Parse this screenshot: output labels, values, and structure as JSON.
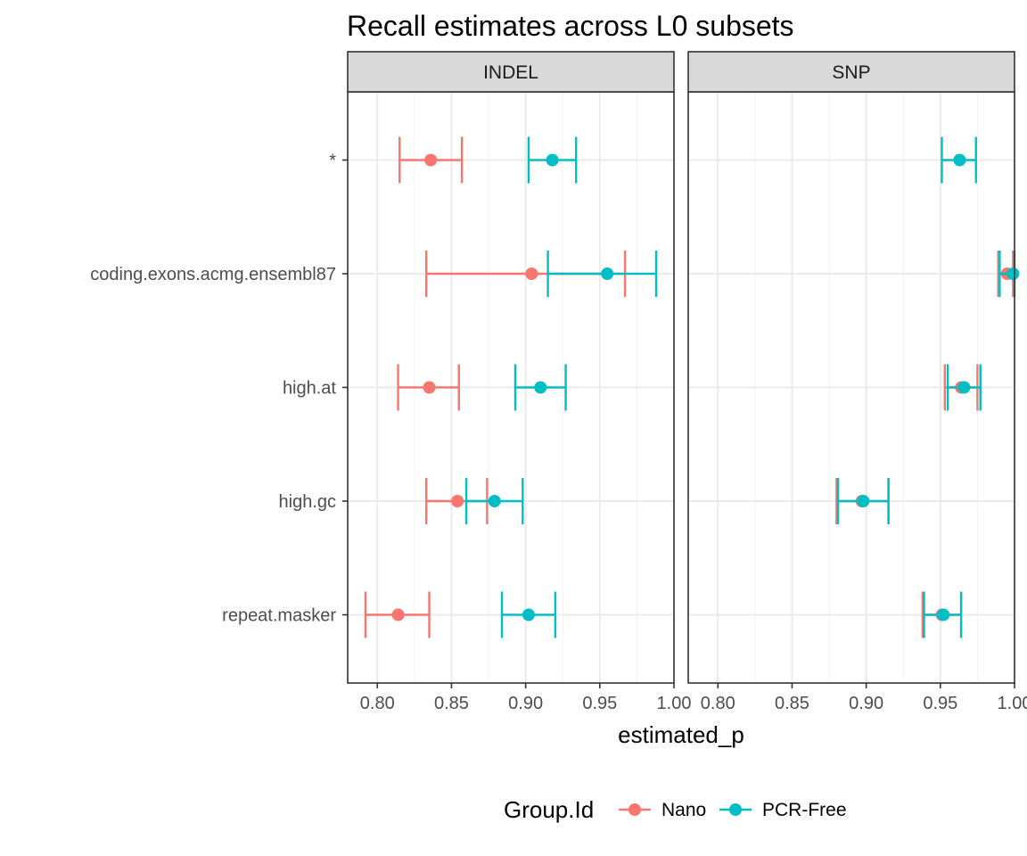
{
  "chart_data": {
    "type": "scatter",
    "title": "Recall estimates across L0 subsets",
    "xlabel": "estimated_p",
    "ylabel": "",
    "categories": [
      "*",
      "coding.exons.acmg.ensembl87",
      "high.at",
      "high.gc",
      "repeat.masker"
    ],
    "xlim": [
      0.78,
      1.0
    ],
    "x_ticks": [
      "0.80",
      "0.85",
      "0.90",
      "0.95",
      "1.00"
    ],
    "x_tick_values": [
      0.8,
      0.85,
      0.9,
      0.95,
      1.0
    ],
    "grid": true,
    "legend": {
      "title": "Group.Id",
      "position": "bottom",
      "entries": [
        "Nano",
        "PCR-Free"
      ]
    },
    "colors": {
      "Nano": "#f8766d",
      "PCR-Free": "#00bfc4"
    },
    "panels": [
      {
        "label": "INDEL",
        "series": [
          {
            "name": "Nano",
            "points": [
              {
                "category": "*",
                "estimate": 0.836,
                "low": 0.815,
                "high": 0.857
              },
              {
                "category": "coding.exons.acmg.ensembl87",
                "estimate": 0.904,
                "low": 0.833,
                "high": 0.967
              },
              {
                "category": "high.at",
                "estimate": 0.835,
                "low": 0.814,
                "high": 0.855
              },
              {
                "category": "high.gc",
                "estimate": 0.854,
                "low": 0.833,
                "high": 0.874
              },
              {
                "category": "repeat.masker",
                "estimate": 0.814,
                "low": 0.792,
                "high": 0.835
              }
            ]
          },
          {
            "name": "PCR-Free",
            "points": [
              {
                "category": "*",
                "estimate": 0.918,
                "low": 0.902,
                "high": 0.934
              },
              {
                "category": "coding.exons.acmg.ensembl87",
                "estimate": 0.955,
                "low": 0.915,
                "high": 0.988
              },
              {
                "category": "high.at",
                "estimate": 0.91,
                "low": 0.893,
                "high": 0.927
              },
              {
                "category": "high.gc",
                "estimate": 0.879,
                "low": 0.86,
                "high": 0.898
              },
              {
                "category": "repeat.masker",
                "estimate": 0.902,
                "low": 0.884,
                "high": 0.92
              }
            ]
          }
        ]
      },
      {
        "label": "SNP",
        "series": [
          {
            "name": "Nano",
            "points": [
              {
                "category": "coding.exons.acmg.ensembl87",
                "estimate": 0.995,
                "low": 0.989,
                "high": 0.999
              },
              {
                "category": "high.at",
                "estimate": 0.964,
                "low": 0.953,
                "high": 0.975
              },
              {
                "category": "high.gc",
                "estimate": 0.897,
                "low": 0.88,
                "high": 0.915
              },
              {
                "category": "repeat.masker",
                "estimate": 0.951,
                "low": 0.938,
                "high": 0.964
              }
            ]
          },
          {
            "name": "PCR-Free",
            "points": [
              {
                "category": "*",
                "estimate": 0.963,
                "low": 0.951,
                "high": 0.974
              },
              {
                "category": "coding.exons.acmg.ensembl87",
                "estimate": 0.999,
                "low": 0.99,
                "high": 1.0
              },
              {
                "category": "high.at",
                "estimate": 0.966,
                "low": 0.955,
                "high": 0.977
              },
              {
                "category": "high.gc",
                "estimate": 0.898,
                "low": 0.881,
                "high": 0.915
              },
              {
                "category": "repeat.masker",
                "estimate": 0.952,
                "low": 0.939,
                "high": 0.964
              }
            ]
          }
        ]
      }
    ]
  }
}
